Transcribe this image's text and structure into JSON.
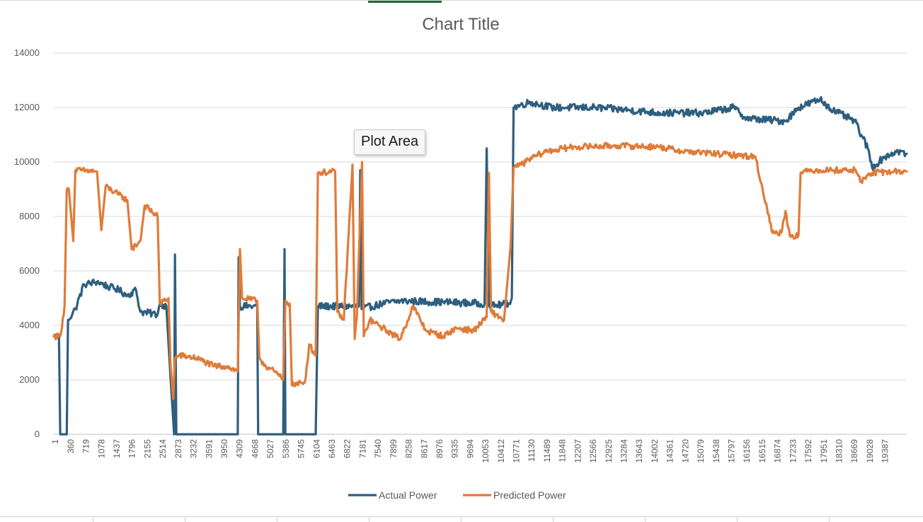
{
  "tooltip": {
    "label": "Plot Area"
  },
  "chart_data": {
    "type": "line",
    "title": "Chart Title",
    "xlabel": "",
    "ylabel": "",
    "ylim": [
      0,
      14000
    ],
    "y_ticks": [
      0,
      2000,
      4000,
      6000,
      8000,
      10000,
      12000,
      14000
    ],
    "x_range": [
      1,
      19700
    ],
    "x_tick_labels": [
      "1",
      "360",
      "719",
      "1078",
      "1437",
      "1796",
      "2155",
      "2514",
      "2873",
      "3232",
      "3591",
      "3950",
      "4309",
      "4668",
      "5027",
      "5386",
      "5745",
      "6104",
      "6463",
      "6822",
      "7181",
      "7540",
      "7899",
      "8258",
      "8617",
      "8976",
      "9335",
      "9694",
      "10053",
      "10412",
      "10771",
      "11130",
      "11489",
      "11848",
      "12207",
      "12566",
      "12925",
      "13284",
      "13643",
      "14002",
      "14361",
      "14720",
      "15079",
      "15438",
      "15797",
      "16156",
      "16515",
      "16874",
      "17233",
      "17592",
      "17951",
      "18310",
      "18669",
      "19028",
      "19387"
    ],
    "grid": true,
    "legend_position": "bottom",
    "series": [
      {
        "name": "Actual Power",
        "color": "#2e5f7f",
        "noise": 130,
        "points": [
          [
            1,
            3600
          ],
          [
            120,
            3600
          ],
          [
            150,
            0
          ],
          [
            300,
            0
          ],
          [
            330,
            4200
          ],
          [
            500,
            4600
          ],
          [
            700,
            5500
          ],
          [
            1000,
            5600
          ],
          [
            1300,
            5400
          ],
          [
            1500,
            5300
          ],
          [
            1700,
            5100
          ],
          [
            1900,
            5300
          ],
          [
            2000,
            4500
          ],
          [
            2400,
            4400
          ],
          [
            2450,
            4800
          ],
          [
            2600,
            4700
          ],
          [
            2700,
            2000
          ],
          [
            2780,
            0
          ],
          [
            2800,
            6600
          ],
          [
            2830,
            0
          ],
          [
            4250,
            0
          ],
          [
            4270,
            6500
          ],
          [
            4300,
            4700
          ],
          [
            4700,
            4700
          ],
          [
            4720,
            0
          ],
          [
            5300,
            0
          ],
          [
            5330,
            6800
          ],
          [
            5350,
            0
          ],
          [
            6050,
            0
          ],
          [
            6100,
            4700
          ],
          [
            7050,
            4700
          ],
          [
            7080,
            9700
          ],
          [
            7110,
            4600
          ],
          [
            7600,
            4800
          ],
          [
            8000,
            4900
          ],
          [
            9000,
            4850
          ],
          [
            9950,
            4800
          ],
          [
            10000,
            10500
          ],
          [
            10050,
            4700
          ],
          [
            10500,
            4800
          ],
          [
            10580,
            5000
          ],
          [
            10620,
            12000
          ],
          [
            11000,
            12200
          ],
          [
            11500,
            12000
          ],
          [
            12500,
            12000
          ],
          [
            13300,
            11900
          ],
          [
            14000,
            11800
          ],
          [
            15000,
            11800
          ],
          [
            15700,
            12000
          ],
          [
            16000,
            11600
          ],
          [
            16900,
            11500
          ],
          [
            17200,
            12000
          ],
          [
            17700,
            12300
          ],
          [
            18000,
            11900
          ],
          [
            18500,
            11500
          ],
          [
            18800,
            10500
          ],
          [
            18900,
            9800
          ],
          [
            19200,
            10200
          ],
          [
            19500,
            10400
          ],
          [
            19700,
            10300
          ]
        ]
      },
      {
        "name": "Predicted Power",
        "color": "#e07b39",
        "noise": 110,
        "points": [
          [
            1,
            3600
          ],
          [
            150,
            3600
          ],
          [
            250,
            4700
          ],
          [
            300,
            9000
          ],
          [
            350,
            9000
          ],
          [
            450,
            7100
          ],
          [
            500,
            9700
          ],
          [
            1000,
            9650
          ],
          [
            1100,
            7500
          ],
          [
            1200,
            9100
          ],
          [
            1500,
            8800
          ],
          [
            1700,
            8600
          ],
          [
            1800,
            6800
          ],
          [
            2000,
            7100
          ],
          [
            2100,
            8400
          ],
          [
            2400,
            8000
          ],
          [
            2450,
            4800
          ],
          [
            2650,
            5000
          ],
          [
            2700,
            2500
          ],
          [
            2760,
            1300
          ],
          [
            2800,
            2800
          ],
          [
            2900,
            2900
          ],
          [
            3300,
            2800
          ],
          [
            3700,
            2500
          ],
          [
            4000,
            2500
          ],
          [
            4250,
            2300
          ],
          [
            4300,
            6800
          ],
          [
            4350,
            5000
          ],
          [
            4700,
            4900
          ],
          [
            4750,
            2800
          ],
          [
            4900,
            2500
          ],
          [
            5100,
            2300
          ],
          [
            5300,
            2000
          ],
          [
            5350,
            4900
          ],
          [
            5450,
            4800
          ],
          [
            5500,
            1800
          ],
          [
            5800,
            1900
          ],
          [
            5900,
            3300
          ],
          [
            6050,
            2900
          ],
          [
            6100,
            9600
          ],
          [
            6500,
            9650
          ],
          [
            6550,
            4500
          ],
          [
            6700,
            4200
          ],
          [
            6900,
            9900
          ],
          [
            6950,
            3500
          ],
          [
            7000,
            4300
          ],
          [
            7120,
            10000
          ],
          [
            7160,
            3600
          ],
          [
            7300,
            4200
          ],
          [
            7700,
            3800
          ],
          [
            8000,
            3500
          ],
          [
            8300,
            4700
          ],
          [
            8600,
            3800
          ],
          [
            9000,
            3600
          ],
          [
            9300,
            3900
          ],
          [
            9700,
            3800
          ],
          [
            10000,
            4300
          ],
          [
            10050,
            9600
          ],
          [
            10100,
            4500
          ],
          [
            10400,
            4200
          ],
          [
            10550,
            6900
          ],
          [
            10620,
            9800
          ],
          [
            10800,
            9900
          ],
          [
            11100,
            10200
          ],
          [
            11400,
            10400
          ],
          [
            12000,
            10550
          ],
          [
            13000,
            10600
          ],
          [
            14000,
            10550
          ],
          [
            14500,
            10400
          ],
          [
            15300,
            10300
          ],
          [
            16200,
            10200
          ],
          [
            16600,
            7400
          ],
          [
            16800,
            7400
          ],
          [
            16900,
            8200
          ],
          [
            17000,
            7300
          ],
          [
            17200,
            7300
          ],
          [
            17250,
            9600
          ],
          [
            17500,
            9700
          ],
          [
            18000,
            9700
          ],
          [
            18500,
            9700
          ],
          [
            18650,
            9300
          ],
          [
            18900,
            9600
          ],
          [
            19400,
            9650
          ],
          [
            19700,
            9650
          ]
        ]
      }
    ]
  }
}
